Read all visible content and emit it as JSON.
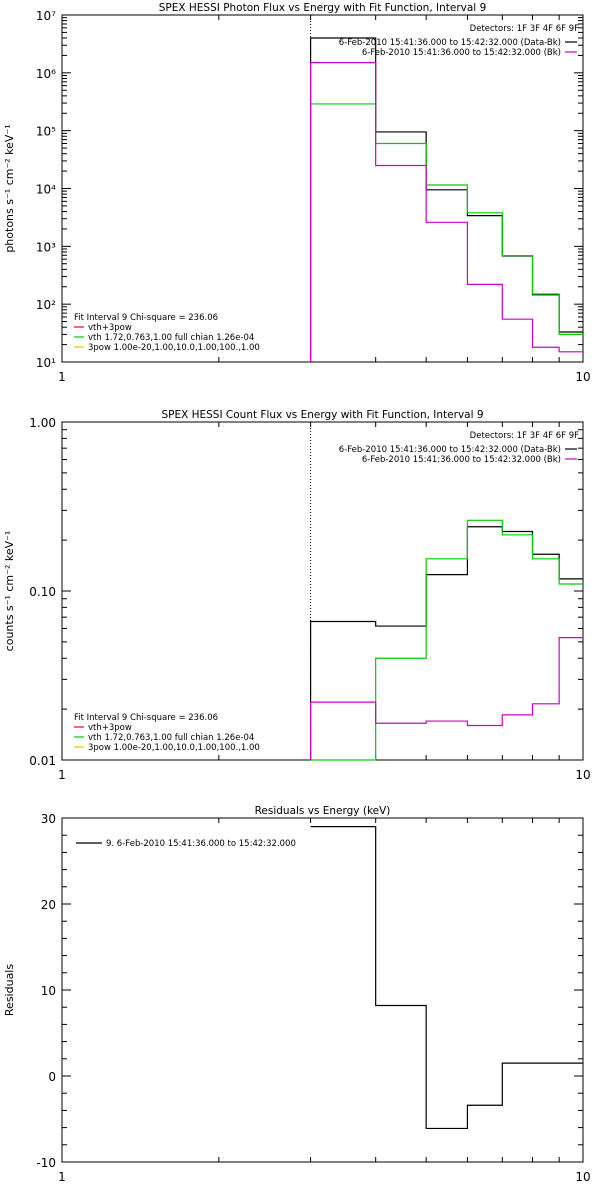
{
  "colors": {
    "data": "#000000",
    "bk": "#cc00cc",
    "fit_total": "#00cc00",
    "vth_3pow": "#ff0000",
    "vth": "#00cc00",
    "pow3": "#cccc00",
    "marker": "#000000"
  },
  "chart_data": [
    {
      "type": "line",
      "title": "SPEX HESSI Photon Flux vs Energy with Fit Function, Interval 9",
      "xlabel": "",
      "ylabel": "photons s⁻¹ cm⁻² keV⁻¹",
      "xscale": "log",
      "yscale": "log",
      "xlim": [
        1,
        10
      ],
      "ylim": [
        10,
        10000000
      ],
      "x_ticks": [
        1,
        10
      ],
      "x_tick_labels": [
        "1",
        "10"
      ],
      "y_ticks": [
        10,
        100,
        1000,
        10000,
        100000,
        1000000,
        10000000
      ],
      "y_tick_labels": [
        "10¹",
        "10²",
        "10³",
        "10⁴",
        "10⁵",
        "10⁶",
        "10⁷"
      ],
      "vline_x": 3,
      "bin_edges": [
        3,
        4,
        5,
        6,
        7,
        8,
        9,
        10
      ],
      "legend_top": {
        "detectors": "Detectors: 1F 3F 4F 6F 9F",
        "entries": [
          {
            "text": "6-Feb-2010 15:41:36.000 to 15:42:32.000 (Data-Bk)",
            "color": "data"
          },
          {
            "text": "6-Feb-2010 15:41:36.000 to 15:42:32.000 (Bk)",
            "color": "bk"
          }
        ]
      },
      "legend_bottom": {
        "header": "Fit Interval 9    Chi-square = 236.06",
        "entries": [
          {
            "text": "vth+3pow",
            "color": "vth_3pow"
          },
          {
            "text": "vth 1.72,0.763,1.00  full chian 1.26e-04",
            "color": "vth"
          },
          {
            "text": "3pow 1.00e-20,1.00,10.0,1.00,100.,1.00",
            "color": "pow3"
          }
        ]
      },
      "series": [
        {
          "color": "data",
          "values": [
            4000000,
            95000,
            9500,
            3400,
            680,
            145,
            33
          ]
        },
        {
          "color": "fit_total",
          "values": [
            290000,
            60000,
            11500,
            3800,
            690,
            150,
            30
          ]
        },
        {
          "color": "bk",
          "values": [
            1500000,
            25000,
            2600,
            220,
            55,
            18,
            15
          ]
        }
      ]
    },
    {
      "type": "line",
      "title": "SPEX HESSI Count Flux vs Energy with Fit Function, Interval 9",
      "xlabel": "",
      "ylabel": "counts s⁻¹ cm⁻² keV⁻¹",
      "xscale": "log",
      "yscale": "log",
      "xlim": [
        1,
        10
      ],
      "ylim": [
        0.01,
        1.0
      ],
      "x_ticks": [
        1,
        10
      ],
      "x_tick_labels": [
        "1",
        "10"
      ],
      "y_ticks": [
        0.01,
        0.1,
        1.0
      ],
      "y_tick_labels": [
        "0.01",
        "0.10",
        "1.00"
      ],
      "vline_x": 3,
      "bin_edges": [
        3,
        4,
        5,
        6,
        7,
        8,
        9,
        10
      ],
      "legend_top": {
        "detectors": "Detectors: 1F 3F 4F 6F 9F",
        "entries": [
          {
            "text": "6-Feb-2010 15:41:36.000 to 15:42:32.000 (Data-Bk)",
            "color": "data"
          },
          {
            "text": "6-Feb-2010 15:41:36.000 to 15:42:32.000 (Bk)",
            "color": "bk"
          }
        ]
      },
      "legend_bottom": {
        "header": "Fit Interval 9    Chi-square = 236.06",
        "entries": [
          {
            "text": "vth+3pow",
            "color": "vth_3pow"
          },
          {
            "text": "vth 1.72,0.763,1.00  full chian 1.26e-04",
            "color": "vth"
          },
          {
            "text": "3pow 1.00e-20,1.00,10.0,1.00,100.,1.00",
            "color": "pow3"
          }
        ]
      },
      "series": [
        {
          "color": "data",
          "values": [
            0.066,
            0.062,
            0.125,
            0.24,
            0.225,
            0.165,
            0.118
          ]
        },
        {
          "color": "fit_total",
          "values": [
            0.005,
            0.04,
            0.155,
            0.262,
            0.215,
            0.155,
            0.11
          ]
        },
        {
          "color": "bk",
          "values": [
            0.022,
            0.0165,
            0.017,
            0.016,
            0.0185,
            0.0215,
            0.053
          ]
        }
      ]
    },
    {
      "type": "line",
      "title": "Residuals vs Energy (keV)",
      "xlabel": "",
      "ylabel": "Residuals",
      "xscale": "log",
      "yscale": "linear",
      "xlim": [
        1,
        10
      ],
      "ylim": [
        -10,
        30
      ],
      "x_ticks": [
        1,
        10
      ],
      "x_tick_labels": [
        "1",
        "10"
      ],
      "y_ticks": [
        -10,
        0,
        10,
        20,
        30
      ],
      "y_tick_labels": [
        "-10",
        "0",
        "10",
        "20",
        "30"
      ],
      "bin_edges": [
        3,
        4,
        5,
        6,
        7,
        8,
        9,
        10
      ],
      "legend_top_left": {
        "entries": [
          {
            "text": "9.  6-Feb-2010 15:41:36.000 to 15:42:32.000",
            "color": "data"
          }
        ]
      },
      "series": [
        {
          "color": "data",
          "values": [
            29,
            8.2,
            -6.1,
            -3.4,
            1.5,
            1.5,
            1.5
          ]
        }
      ]
    }
  ]
}
